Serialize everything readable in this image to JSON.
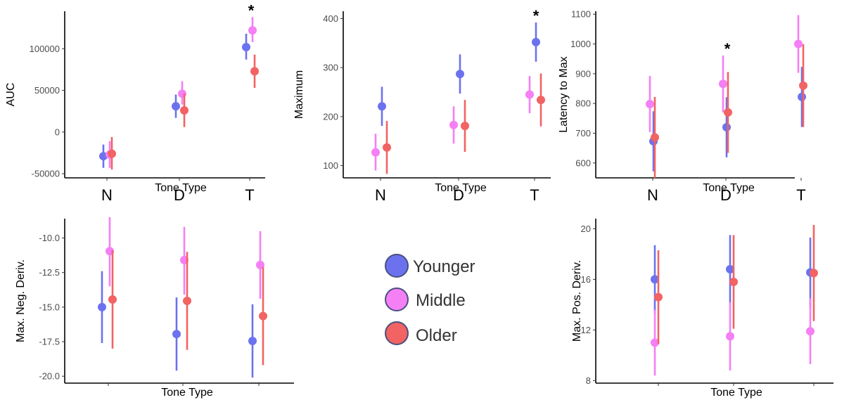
{
  "chart_data": [
    {
      "type": "scatter",
      "panel": "auc",
      "xlabel": "Tone Type",
      "ylabel": "AUC",
      "categories": [
        "N",
        "D",
        "T"
      ],
      "ylim": [
        -55000,
        145000
      ],
      "yticks": [
        -50000,
        0,
        50000,
        100000
      ],
      "ytick_labels": [
        "-50000",
        "0",
        "50000",
        "100000"
      ],
      "big_x_labels": [
        "N",
        "D",
        "T"
      ],
      "annotations": [
        {
          "text": "*",
          "category": "T"
        }
      ],
      "series": [
        {
          "name": "Younger",
          "means": [
            -29000,
            31000,
            102000
          ],
          "low": [
            -43000,
            17000,
            87000
          ],
          "high": [
            -15000,
            45000,
            118000
          ]
        },
        {
          "name": "Middle",
          "means": [
            -27000,
            46000,
            122000
          ],
          "low": [
            -43000,
            33000,
            108000
          ],
          "high": [
            -11000,
            61000,
            138000
          ]
        },
        {
          "name": "Older",
          "means": [
            -26000,
            26000,
            73000
          ],
          "low": [
            -45000,
            6000,
            53000
          ],
          "high": [
            -6000,
            46000,
            93000
          ]
        }
      ]
    },
    {
      "type": "scatter",
      "panel": "maximum",
      "xlabel": "Tone Type",
      "ylabel": "Maximum",
      "categories": [
        "N",
        "D",
        "T"
      ],
      "ylim": [
        75,
        415
      ],
      "yticks": [
        100,
        200,
        300,
        400
      ],
      "ytick_labels": [
        "100",
        "200",
        "300",
        "400"
      ],
      "big_x_labels": [
        "N",
        "D",
        "T"
      ],
      "annotations": [
        {
          "text": "*",
          "category": "T"
        }
      ],
      "series": [
        {
          "name": "Younger",
          "means": [
            221,
            287,
            352
          ],
          "low": [
            181,
            247,
            312
          ],
          "high": [
            261,
            327,
            392
          ]
        },
        {
          "name": "Middle",
          "means": [
            127,
            183,
            245
          ],
          "low": [
            90,
            145,
            207
          ],
          "high": [
            165,
            221,
            283
          ]
        },
        {
          "name": "Older",
          "means": [
            137,
            181,
            234
          ],
          "low": [
            83,
            128,
            180
          ],
          "high": [
            191,
            234,
            288
          ]
        }
      ]
    },
    {
      "type": "scatter",
      "panel": "latency",
      "xlabel": "Tone Type",
      "ylabel": "Latency to Max",
      "categories": [
        "N",
        "D",
        "T"
      ],
      "ylim": [
        550,
        1110
      ],
      "yticks": [
        600,
        700,
        800,
        900,
        1000,
        1100
      ],
      "ytick_labels": [
        "600",
        "700",
        "800",
        "900",
        "1000",
        "1100"
      ],
      "big_x_labels": [
        "N",
        "D",
        "T"
      ],
      "annotations": [
        {
          "text": "*",
          "category": "D"
        }
      ],
      "series": [
        {
          "name": "Younger",
          "means": [
            673,
            720,
            822
          ],
          "low": [
            572,
            619,
            721
          ],
          "high": [
            774,
            821,
            923
          ]
        },
        {
          "name": "Middle",
          "means": [
            798,
            866,
            1000
          ],
          "low": [
            704,
            770,
            903
          ],
          "high": [
            893,
            961,
            1097
          ]
        },
        {
          "name": "Older",
          "means": [
            686,
            770,
            860
          ],
          "low": [
            550,
            634,
            721
          ],
          "high": [
            822,
            906,
            999
          ]
        }
      ]
    },
    {
      "type": "scatter",
      "panel": "max-neg-deriv",
      "xlabel": "Tone Type",
      "ylabel": "Max. Neg. Deriv.",
      "categories": [
        "N",
        "D",
        "T"
      ],
      "ylim": [
        -20.5,
        -8.6
      ],
      "yticks": [
        -20.0,
        -17.5,
        -15.0,
        -12.5,
        -10.0
      ],
      "ytick_labels": [
        "-20.0",
        "-17.5",
        "-15.0",
        "-12.5",
        "-10.0"
      ],
      "big_x_labels": [],
      "annotations": [],
      "series": [
        {
          "name": "Younger",
          "means": [
            -15.0,
            -16.95,
            -17.45
          ],
          "low": [
            -17.6,
            -19.6,
            -20.1
          ],
          "high": [
            -12.4,
            -14.3,
            -14.8
          ]
        },
        {
          "name": "Middle",
          "means": [
            -10.95,
            -11.6,
            -11.95
          ],
          "low": [
            -13.5,
            -14.1,
            -14.4
          ],
          "high": [
            -8.5,
            -9.2,
            -9.5
          ]
        },
        {
          "name": "Older",
          "means": [
            -14.45,
            -14.55,
            -15.65
          ],
          "low": [
            -18.0,
            -18.1,
            -19.2
          ],
          "high": [
            -10.9,
            -11.0,
            -12.1
          ]
        }
      ]
    },
    {
      "type": "scatter",
      "panel": "max-pos-deriv",
      "xlabel": "Tone Type",
      "ylabel": "Max. Pos. Deriv.",
      "categories": [
        "N",
        "D",
        "T"
      ],
      "ylim": [
        7.8,
        20.8
      ],
      "yticks": [
        8,
        12,
        16,
        20
      ],
      "ytick_labels": [
        "8",
        "12",
        "16",
        "20"
      ],
      "big_x_labels": [],
      "annotations": [],
      "series": [
        {
          "name": "Younger",
          "means": [
            16.0,
            16.8,
            16.55
          ],
          "low": [
            13.3,
            14.1,
            13.8
          ],
          "high": [
            18.7,
            19.5,
            19.3
          ]
        },
        {
          "name": "Middle",
          "means": [
            11.0,
            11.5,
            11.9
          ],
          "low": [
            8.4,
            8.8,
            9.3
          ],
          "high": [
            13.6,
            14.2,
            14.5
          ]
        },
        {
          "name": "Older",
          "means": [
            14.6,
            15.8,
            16.5
          ],
          "low": [
            10.9,
            12.1,
            12.7
          ],
          "high": [
            18.3,
            19.5,
            20.3
          ]
        }
      ]
    }
  ],
  "legend": {
    "entries": [
      {
        "label": "Younger",
        "color": "#6c72ee"
      },
      {
        "label": "Middle",
        "color": "#f57ff5"
      },
      {
        "label": "Older",
        "color": "#f26363"
      }
    ]
  },
  "colors": {
    "Younger": "#6c72ee",
    "Middle": "#f57ff5",
    "Older": "#f26363",
    "legend_outline": "#4a5080"
  }
}
